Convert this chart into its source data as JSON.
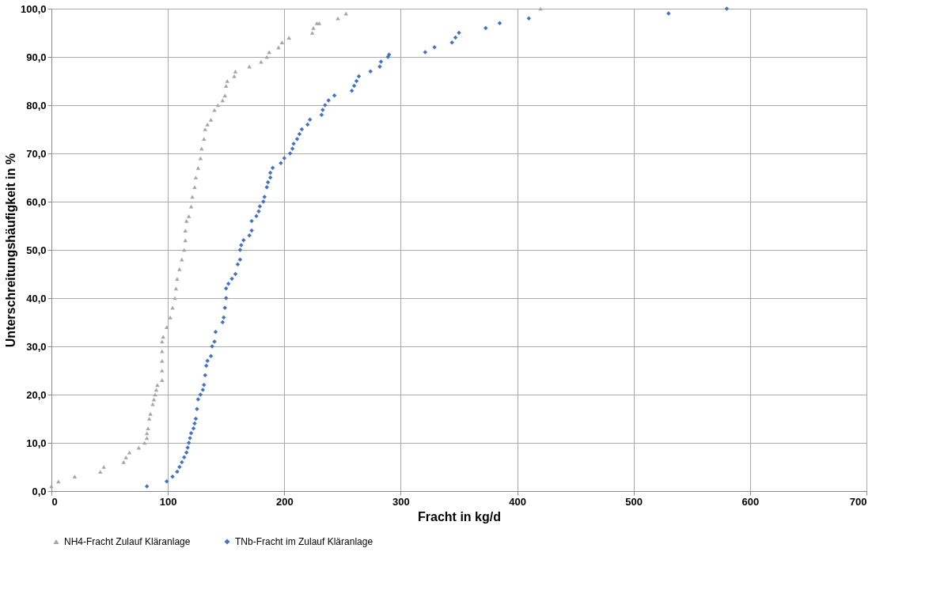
{
  "chart_data": {
    "type": "scatter",
    "xlabel": "Fracht in kg/d",
    "ylabel": "Unterschreitungshäufigkeit in %",
    "xlim": [
      0,
      700
    ],
    "xticks": [
      0,
      100,
      200,
      300,
      400,
      500,
      600,
      700
    ],
    "ylim": [
      0,
      100
    ],
    "yticks": [
      {
        "value": 0,
        "label": "0,0"
      },
      {
        "value": 10,
        "label": "10,0"
      },
      {
        "value": 20,
        "label": "20,0"
      },
      {
        "value": 30,
        "label": "30,0"
      },
      {
        "value": 40,
        "label": "40,0"
      },
      {
        "value": 50,
        "label": "50,0"
      },
      {
        "value": 60,
        "label": "60,0"
      },
      {
        "value": 70,
        "label": "70,0"
      },
      {
        "value": 80,
        "label": "80,0"
      },
      {
        "value": 90,
        "label": "90,0"
      },
      {
        "value": 100,
        "label": "100,0"
      }
    ],
    "grid": true,
    "legend": "bottom",
    "series": [
      {
        "name": "NH4-Fracht Zulauf Kläranlage",
        "color": "#a5a5a5",
        "marker": "triangle",
        "x": [
          0,
          6,
          20,
          42,
          45,
          62,
          64,
          67,
          75,
          80,
          82,
          82,
          83,
          84,
          85,
          87,
          88,
          89,
          90,
          91,
          95,
          95,
          95,
          95,
          95,
          96,
          99,
          102,
          104,
          106,
          107,
          108,
          110,
          112,
          114,
          115,
          115,
          116,
          118,
          120,
          121,
          123,
          124,
          126,
          128,
          129,
          131,
          132,
          134,
          137,
          140,
          143,
          147,
          149,
          150,
          151,
          157,
          158,
          170,
          180,
          185,
          187,
          195,
          198,
          204,
          224,
          225,
          228,
          230,
          246,
          253,
          420
        ],
        "values": [
          1,
          2,
          3,
          4,
          5,
          6,
          7,
          8,
          9,
          10,
          11,
          12,
          13,
          15,
          16,
          18,
          19,
          20,
          21,
          22,
          23,
          25,
          27,
          29,
          31,
          32,
          34,
          36,
          38,
          40,
          42,
          44,
          46,
          48,
          50,
          52,
          54,
          56,
          57,
          59,
          61,
          63,
          65,
          67,
          69,
          71,
          73,
          75,
          76,
          77,
          79,
          80,
          81,
          82,
          84,
          85,
          86,
          87,
          88,
          89,
          90,
          91,
          92,
          93,
          94,
          95,
          96,
          97,
          97,
          98,
          99,
          100
        ]
      },
      {
        "name": "TNb-Fracht im Zulauf Kläranlage",
        "color": "#4472c4",
        "marker": "diamond",
        "x": [
          82,
          99,
          104,
          108,
          110,
          112,
          114,
          116,
          117,
          118,
          119,
          120,
          122,
          123,
          124,
          125,
          126,
          128,
          130,
          131,
          132,
          133,
          134,
          137,
          138,
          140,
          141,
          147,
          148,
          149,
          150,
          150,
          152,
          155,
          158,
          160,
          162,
          162,
          163,
          165,
          170,
          172,
          172,
          176,
          178,
          179,
          182,
          183,
          185,
          186,
          188,
          188,
          190,
          197,
          200,
          205,
          207,
          208,
          211,
          213,
          215,
          220,
          222,
          232,
          233,
          235,
          238,
          243,
          258,
          260,
          262,
          264,
          274,
          282,
          283,
          289,
          290,
          321,
          329,
          344,
          347,
          350,
          373,
          385,
          410,
          530,
          580
        ],
        "values": [
          1,
          2,
          3,
          4,
          5,
          6,
          7,
          8,
          9,
          10,
          11,
          12,
          13,
          14,
          15,
          17,
          19,
          20,
          21,
          22,
          24,
          26,
          27,
          28,
          30,
          31,
          33,
          35,
          36,
          38,
          40,
          42,
          43,
          44,
          45,
          47,
          48,
          50,
          51,
          52,
          53,
          54,
          56,
          57,
          58,
          59,
          60,
          61,
          63,
          64,
          65,
          66,
          67,
          68,
          69,
          70,
          71,
          72,
          73,
          74,
          75,
          76,
          77,
          78,
          79,
          80,
          81,
          82,
          83,
          84,
          85,
          86,
          87,
          88,
          89,
          90,
          90.5,
          91,
          92,
          93,
          94,
          95,
          96,
          97,
          98,
          99,
          100
        ]
      }
    ]
  }
}
